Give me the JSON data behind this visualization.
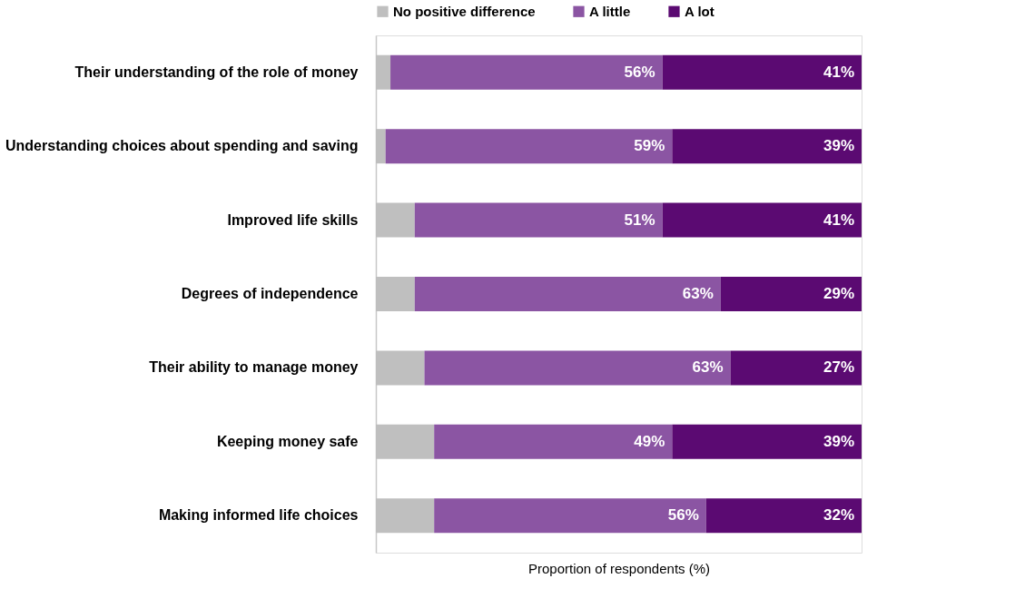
{
  "chart_data": {
    "type": "bar",
    "orientation": "horizontal",
    "stacked": true,
    "xlabel": "Proportion of respondents (%)",
    "categories": [
      "Their understanding of the role of money",
      "Understanding choices about spending and saving",
      "Improved life skills",
      "Degrees of independence",
      "Their ability to manage money",
      "Keeping money safe",
      "Making informed life choices"
    ],
    "series": [
      {
        "name": "No positive difference",
        "color": "#bfbfbf",
        "values": [
          3,
          2,
          8,
          8,
          10,
          12,
          12
        ]
      },
      {
        "name": "A little",
        "color": "#8b55a3",
        "values": [
          56,
          59,
          51,
          63,
          63,
          49,
          56
        ],
        "value_labels": [
          "56%",
          "59%",
          "51%",
          "63%",
          "63%",
          "49%",
          "56%"
        ]
      },
      {
        "name": "A lot",
        "color": "#5b0a72",
        "values": [
          41,
          39,
          41,
          29,
          27,
          39,
          32
        ],
        "value_labels": [
          "41%",
          "39%",
          "41%",
          "29%",
          "27%",
          "39%",
          "32%"
        ]
      }
    ],
    "xlim": [
      0,
      100
    ],
    "tick_labels": "y",
    "legend": "top",
    "grid": false
  }
}
